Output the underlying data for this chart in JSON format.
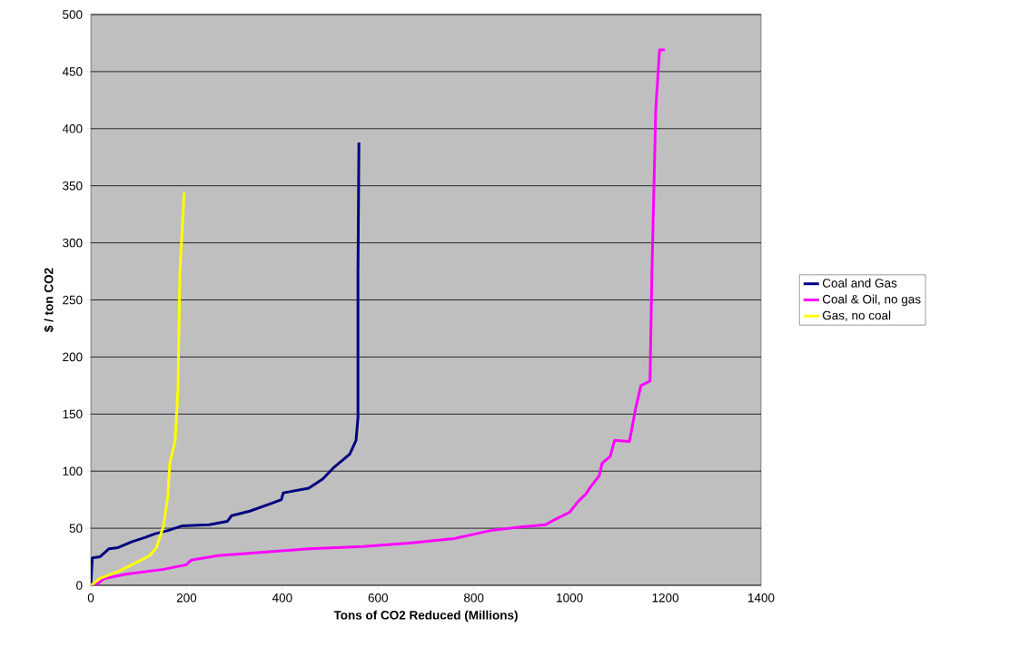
{
  "chart_data": {
    "type": "line",
    "xlabel": "Tons of CO2 Reduced (Millions)",
    "ylabel": "$ / ton CO2",
    "xlim": [
      0,
      1400
    ],
    "ylim": [
      0,
      500
    ],
    "xticks": [
      0,
      200,
      400,
      600,
      800,
      1000,
      1200,
      1400
    ],
    "yticks": [
      0,
      50,
      100,
      150,
      200,
      250,
      300,
      350,
      400,
      450,
      500
    ],
    "grid": "y",
    "legend": "right",
    "marker": "none",
    "line_style": "solid",
    "series": [
      {
        "name": "Coal and Gas",
        "color": "#000080",
        "x": [
          0,
          3,
          19,
          38,
          57,
          85,
          114,
          133,
          161,
          190,
          247,
          285,
          294,
          332,
          379,
          398,
          402,
          455,
          484,
          507,
          541,
          554,
          558,
          558,
          560
        ],
        "values": [
          0,
          24,
          25,
          32,
          33,
          38,
          42,
          45,
          48,
          52,
          53,
          56,
          61,
          65,
          72,
          75,
          81,
          85,
          93,
          103,
          115,
          127,
          147,
          274,
          388
        ]
      },
      {
        "name": "Coal & Oil, no gas",
        "color": "#ff00ff",
        "x": [
          9,
          28,
          76,
          152,
          199,
          209,
          266,
          360,
          455,
          569,
          664,
          759,
          835,
          897,
          949,
          971,
          1000,
          1019,
          1034,
          1045,
          1062,
          1068,
          1085,
          1094,
          1125,
          1138,
          1149,
          1168,
          1172,
          1180,
          1188,
          1199
        ],
        "values": [
          0,
          6,
          10,
          14,
          18,
          22,
          26,
          29,
          32,
          34,
          37,
          41,
          48,
          51,
          53,
          58,
          64,
          74,
          80,
          87,
          96,
          107,
          113,
          127,
          126,
          155,
          175,
          179,
          274,
          417,
          469,
          469
        ]
      },
      {
        "name": "Gas, no coal",
        "color": "#ffff00",
        "x": [
          0,
          19,
          57,
          95,
          123,
          137,
          152,
          161,
          165,
          176,
          182,
          186,
          195
        ],
        "values": [
          0,
          6,
          12,
          20,
          26,
          33,
          52,
          79,
          107,
          126,
          171,
          274,
          344
        ]
      }
    ]
  }
}
